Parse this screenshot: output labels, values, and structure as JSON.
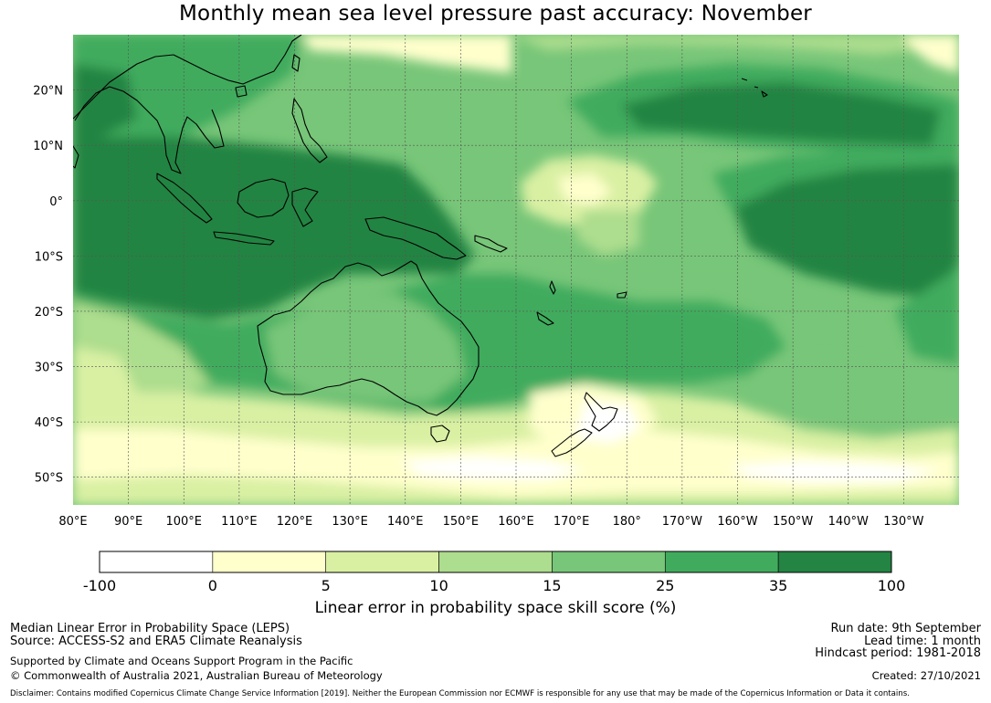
{
  "title": "Monthly mean sea level pressure past accuracy: November",
  "map": {
    "lat_labels": [
      "20°N",
      "10°N",
      "0°",
      "10°S",
      "20°S",
      "30°S",
      "40°S",
      "50°S"
    ],
    "lat_values": [
      20,
      10,
      0,
      -10,
      -20,
      -30,
      -40,
      -50
    ],
    "lon_labels": [
      "80°E",
      "90°E",
      "100°E",
      "110°E",
      "120°E",
      "130°E",
      "140°E",
      "150°E",
      "160°E",
      "170°E",
      "180°",
      "170°W",
      "160°W",
      "150°W",
      "140°W",
      "130°W"
    ],
    "lon_values": [
      80,
      90,
      100,
      110,
      120,
      130,
      140,
      150,
      160,
      170,
      180,
      190,
      200,
      210,
      220,
      230
    ],
    "lon_range": [
      80,
      240
    ],
    "lat_range": [
      -55,
      30
    ]
  },
  "colorbar": {
    "ticks": [
      "-100",
      "0",
      "5",
      "10",
      "15",
      "25",
      "35",
      "100"
    ],
    "colors": [
      "#ffffff",
      "#ffffcc",
      "#d9f0a3",
      "#addd8e",
      "#78c679",
      "#41ab5d",
      "#238443"
    ],
    "label": "Linear error in probability space skill score (%)"
  },
  "footer": {
    "line1": "Median Linear Error in Probability Space (LEPS)",
    "line2": "Source: ACCESS-S2 and ERA5 Climate Reanalysis",
    "line3": "Supported by Climate and Oceans Support Program in the Pacific",
    "line4": "© Commonwealth of Australia 2021, Australian Bureau of Meteorology",
    "run_date": "Run date: 9th September",
    "lead_time": "Lead time: 1 month",
    "hindcast": "Hindcast period: 1981-2018",
    "created": "Created: 27/10/2021",
    "disclaimer": "Disclaimer: Contains modified Copernicus Climate Change Service Information [2019]. Neither the European Commission nor ECMWF is responsible for any use that may be made of the Copernicus Information or Data it contains."
  }
}
